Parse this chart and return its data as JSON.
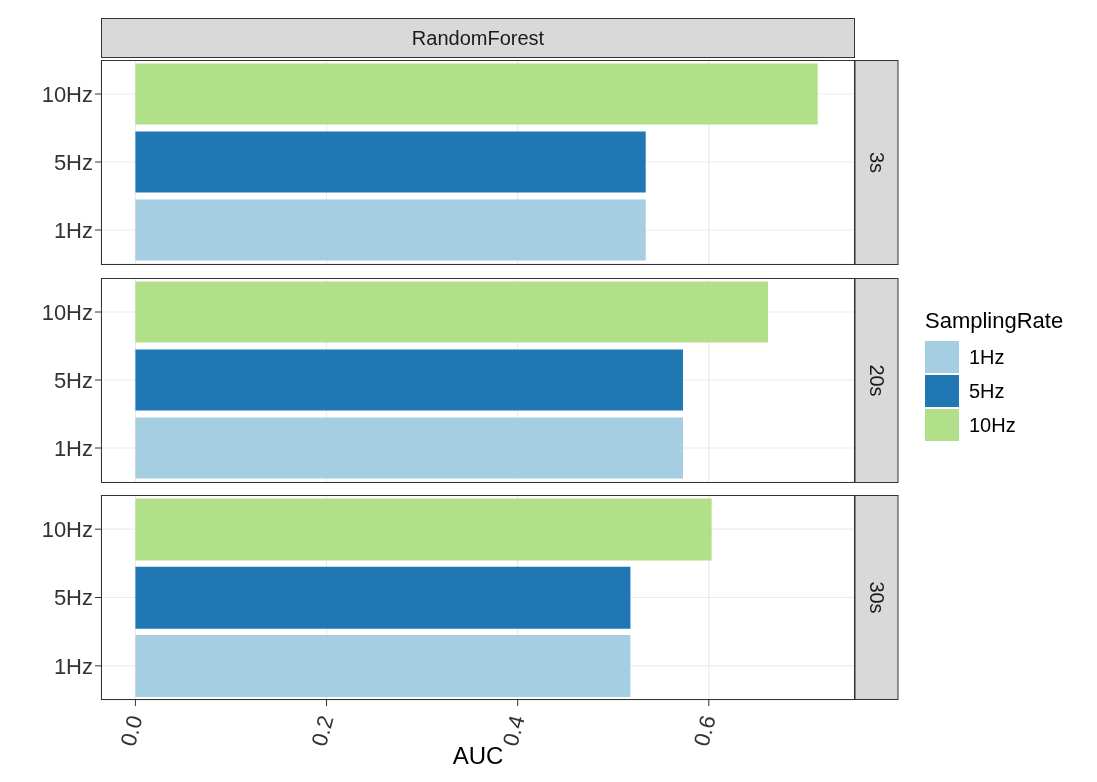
{
  "chart_data": [
    {
      "type": "bar",
      "orientation": "horizontal",
      "title": "RandomForest",
      "y2label": "3s",
      "categories": [
        "10Hz",
        "5Hz",
        "1Hz"
      ],
      "series": [
        {
          "color": "#a6cee3",
          "values": [
            null,
            null,
            0.534
          ]
        },
        {
          "color": "#1f78b4",
          "values": [
            null,
            0.534,
            null
          ]
        },
        {
          "color": "#b2df8a",
          "values": [
            0.714,
            null,
            null
          ]
        }
      ],
      "xlim": [
        -0.036,
        0.753
      ],
      "xticks": [
        {
          "value": 0,
          "label": null
        },
        {
          "value": 0.2,
          "label": null
        },
        {
          "value": 0.4,
          "label": null
        },
        {
          "value": 0.6,
          "label": null
        }
      ],
      "grid": true,
      "tick_labels": "y",
      "legend": false
    },
    {
      "type": "bar",
      "orientation": "horizontal",
      "y2label": "20s",
      "categories": [
        "10Hz",
        "5Hz",
        "1Hz"
      ],
      "series": [
        {
          "name": "1Hz",
          "color": "#a6cee3",
          "values": [
            null,
            null,
            0.573
          ]
        },
        {
          "name": "5Hz",
          "color": "#1f78b4",
          "values": [
            null,
            0.573,
            null
          ]
        },
        {
          "name": "10Hz",
          "color": "#b2df8a",
          "values": [
            0.662,
            null,
            null
          ]
        }
      ],
      "xlim": [
        -0.036,
        0.753
      ],
      "xticks": [
        {
          "value": 0,
          "label": null
        },
        {
          "value": 0.2,
          "label": null
        },
        {
          "value": 0.4,
          "label": null
        },
        {
          "value": 0.6,
          "label": null
        }
      ],
      "grid": true,
      "tick_labels": "y",
      "legend": "right",
      "legend_title": "SamplingRate"
    },
    {
      "type": "bar",
      "orientation": "horizontal",
      "y2label": "30s",
      "xlabel": "AUC",
      "categories": [
        "10Hz",
        "5Hz",
        "1Hz"
      ],
      "series": [
        {
          "color": "#a6cee3",
          "values": [
            null,
            null,
            0.518
          ]
        },
        {
          "color": "#1f78b4",
          "values": [
            null,
            0.518,
            null
          ]
        },
        {
          "color": "#b2df8a",
          "values": [
            0.603,
            null,
            null
          ]
        }
      ],
      "xlim": [
        -0.036,
        0.753
      ],
      "xticks": [
        {
          "value": 0,
          "label": "0.0"
        },
        0.2,
        0.4,
        0.6
      ],
      "grid": true,
      "legend": false
    }
  ]
}
